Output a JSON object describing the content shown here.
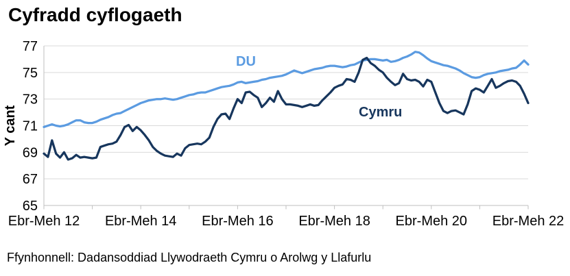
{
  "page": {
    "title": "Cyfradd cyflogaeth",
    "source": "Ffynhonnell: Dadansoddiad Llywodraeth Cymru o Arolwg y Llafurlu"
  },
  "colors": {
    "du_line": "#5B9BE1",
    "cymru_line": "#17365D",
    "gridline": "#D9D9D9",
    "axis": "#BFBFBF",
    "text": "#000000"
  },
  "chart_data": {
    "type": "line",
    "title": "Cyfradd cyflogaeth",
    "xlabel": "",
    "ylabel": "Y cant",
    "ylim": [
      65,
      77
    ],
    "yticks": [
      65,
      67,
      69,
      71,
      73,
      75,
      77
    ],
    "grid": "horizontal",
    "legend_position": "inline-labels",
    "x_description": "Rolling quarters, monthly points from Ebr-Meh 2012 to Ebr-Meh 2022",
    "x_tick_labels": [
      "Ebr-Meh 12",
      "Ebr-Meh 14",
      "Ebr-Meh 16",
      "Ebr-Meh 18",
      "Ebr-Meh 20",
      "Ebr-Meh 22"
    ],
    "series": [
      {
        "name": "DU",
        "color": "#5B9BE1",
        "values": [
          70.9,
          71.0,
          71.1,
          71.0,
          70.95,
          71.0,
          71.1,
          71.25,
          71.4,
          71.4,
          71.25,
          71.2,
          71.2,
          71.3,
          71.45,
          71.55,
          71.65,
          71.8,
          71.9,
          71.95,
          72.1,
          72.25,
          72.4,
          72.55,
          72.7,
          72.8,
          72.9,
          72.95,
          73.0,
          73.0,
          73.05,
          73.0,
          72.95,
          73.0,
          73.1,
          73.2,
          73.3,
          73.35,
          73.45,
          73.5,
          73.5,
          73.6,
          73.7,
          73.8,
          73.9,
          73.95,
          74.0,
          74.1,
          74.25,
          74.3,
          74.2,
          74.25,
          74.3,
          74.35,
          74.45,
          74.5,
          74.6,
          74.65,
          74.7,
          74.75,
          74.85,
          75.0,
          75.15,
          75.05,
          74.95,
          75.05,
          75.15,
          75.25,
          75.3,
          75.35,
          75.45,
          75.5,
          75.5,
          75.45,
          75.4,
          75.45,
          75.55,
          75.6,
          75.75,
          75.9,
          75.95,
          76.0,
          76.0,
          75.95,
          75.9,
          75.95,
          75.8,
          75.85,
          75.95,
          76.1,
          76.2,
          76.35,
          76.55,
          76.5,
          76.3,
          76.05,
          75.85,
          75.75,
          75.65,
          75.55,
          75.5,
          75.4,
          75.3,
          75.15,
          74.95,
          74.8,
          74.65,
          74.6,
          74.65,
          74.8,
          74.9,
          74.95,
          75.0,
          75.1,
          75.15,
          75.2,
          75.3,
          75.35,
          75.6,
          75.9,
          75.6
        ]
      },
      {
        "name": "Cymru",
        "color": "#17365D",
        "values": [
          68.9,
          68.65,
          69.9,
          68.9,
          68.6,
          69.0,
          68.45,
          68.55,
          68.8,
          68.6,
          68.65,
          68.6,
          68.55,
          68.6,
          69.4,
          69.5,
          69.6,
          69.65,
          69.8,
          70.3,
          70.9,
          71.05,
          70.6,
          70.9,
          70.65,
          70.3,
          69.9,
          69.4,
          69.1,
          68.9,
          68.75,
          68.7,
          68.65,
          68.9,
          68.75,
          69.3,
          69.55,
          69.6,
          69.65,
          69.6,
          69.8,
          70.1,
          70.9,
          71.5,
          71.85,
          71.9,
          71.5,
          72.3,
          73.0,
          72.7,
          73.5,
          73.55,
          73.3,
          73.1,
          72.4,
          72.7,
          73.1,
          72.8,
          73.6,
          73.0,
          72.6,
          72.6,
          72.55,
          72.5,
          72.4,
          72.5,
          72.6,
          72.5,
          72.55,
          72.9,
          73.2,
          73.5,
          73.85,
          74.0,
          74.1,
          74.5,
          74.45,
          74.3,
          75.0,
          75.95,
          76.1,
          75.7,
          75.5,
          75.2,
          75.0,
          74.6,
          74.3,
          74.05,
          74.2,
          74.9,
          74.5,
          74.4,
          74.45,
          74.3,
          73.95,
          74.45,
          74.3,
          73.5,
          72.7,
          72.1,
          71.95,
          72.1,
          72.15,
          72.0,
          71.85,
          72.6,
          73.6,
          73.8,
          73.7,
          73.5,
          74.0,
          74.5,
          73.85,
          74.0,
          74.2,
          74.35,
          74.4,
          74.3,
          74.0,
          73.4,
          72.7
        ]
      }
    ],
    "source": "Ffynhonnell: Dadansoddiad Llywodraeth Cymru o Arolwg y Llafurlu"
  }
}
